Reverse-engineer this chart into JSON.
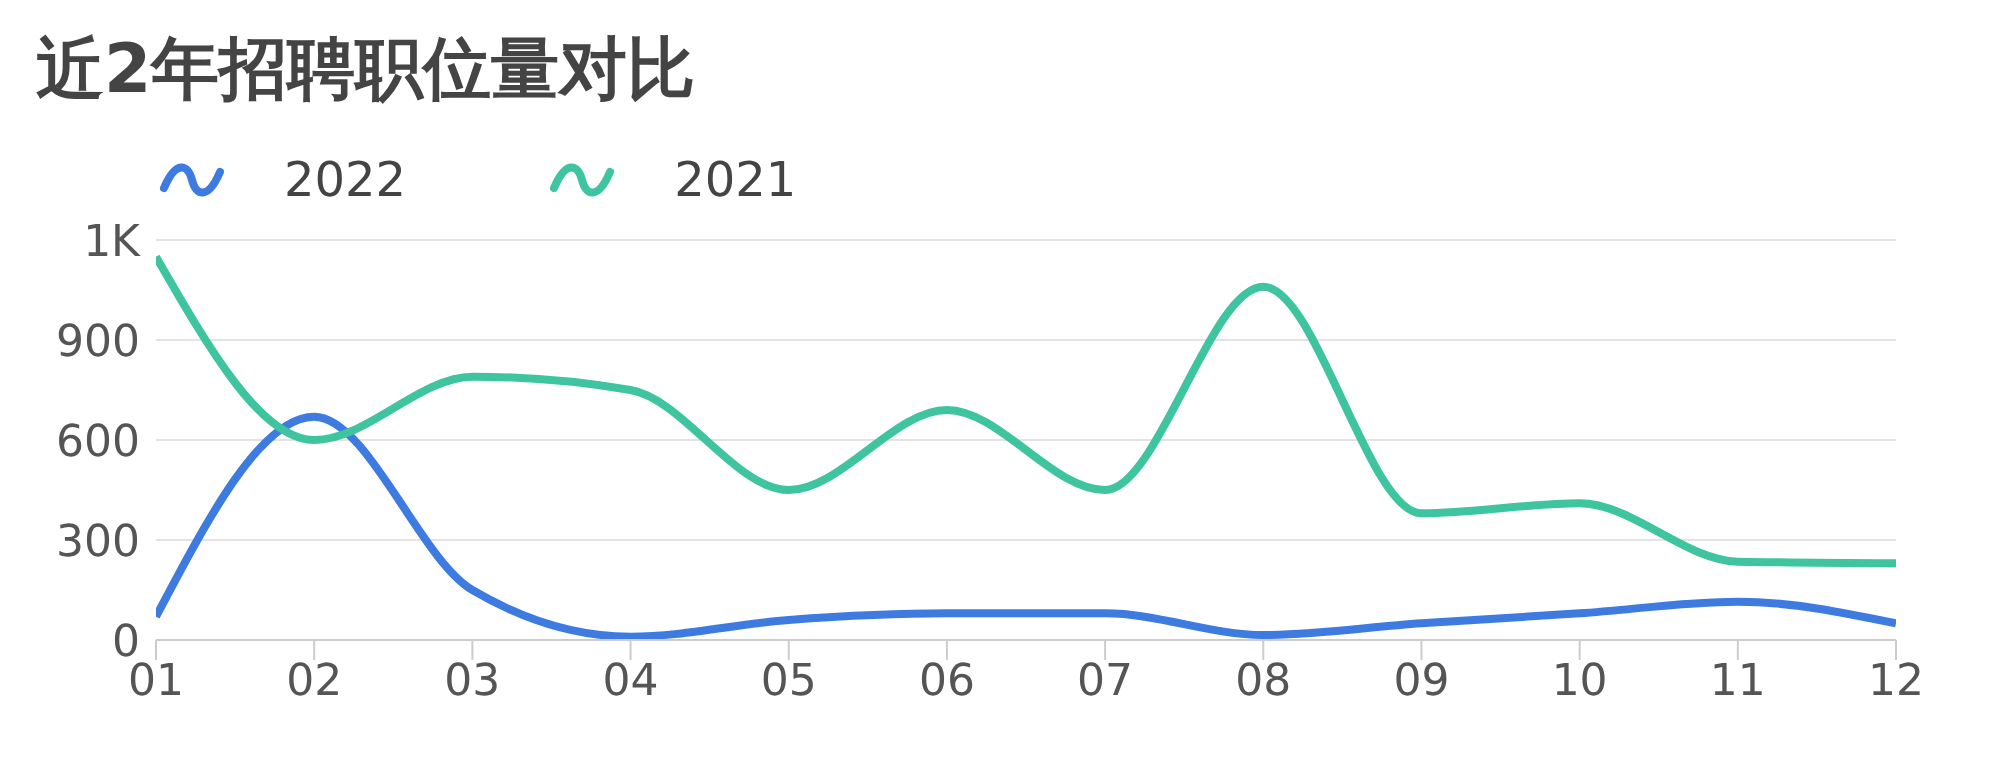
{
  "chart_data": {
    "type": "line",
    "title": "近2年招聘职位量对比",
    "categories": [
      "01",
      "02",
      "03",
      "04",
      "05",
      "06",
      "07",
      "08",
      "09",
      "10",
      "11",
      "12"
    ],
    "series": [
      {
        "name": "2022",
        "color": "#3d7be0",
        "values": [
          70,
          670,
          150,
          10,
          60,
          80,
          80,
          15,
          50,
          80,
          115,
          50
        ]
      },
      {
        "name": "2021",
        "color": "#3fc4a0",
        "values": [
          1150,
          600,
          790,
          750,
          450,
          690,
          450,
          1060,
          380,
          410,
          235,
          230
        ]
      }
    ],
    "ylim": [
      0,
      1200
    ],
    "yticks": [
      0,
      300,
      600,
      900,
      {
        "value": 1200,
        "label": "1K"
      }
    ],
    "grid": "y",
    "legend": "top left",
    "marker": "none",
    "line_style": "solid"
  }
}
